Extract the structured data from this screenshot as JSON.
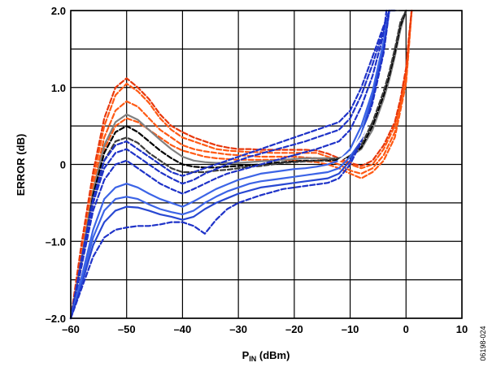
{
  "chart_data": {
    "type": "line",
    "xlabel_main": "P",
    "xlabel_sub": "IN",
    "xlabel_unit": " (dBm)",
    "ylabel": "ERROR (dB)",
    "xlim": [
      -60,
      10
    ],
    "ylim": [
      -2.0,
      2.0
    ],
    "x_ticks": [
      -60,
      -50,
      -40,
      -30,
      -20,
      -10,
      0,
      10
    ],
    "x_tick_labels": [
      "–60",
      "–50",
      "–40",
      "–30",
      "–20",
      "–10",
      "0",
      "10"
    ],
    "y_ticks": [
      -2.0,
      -1.0,
      0,
      1.0,
      2.0
    ],
    "y_tick_labels": [
      "–2.0",
      "–1.0",
      "0",
      "1.0",
      "2.0"
    ],
    "grid": true,
    "grid_y_step": 0.5,
    "side_note": "06198-024",
    "series": [
      {
        "color": "#ff5a14",
        "dashed": true,
        "x": [
          -60,
          -58,
          -56,
          -54,
          -52,
          -50,
          -48,
          -46,
          -44,
          -42,
          -40,
          -38,
          -36,
          -34,
          -32,
          -30,
          -28,
          -26,
          -24,
          -22,
          -20,
          -18,
          -16,
          -14,
          -12,
          -10,
          -8,
          -6,
          -4,
          -2,
          -1,
          0,
          0.5,
          1
        ],
        "y": [
          -2.0,
          -1.1,
          -0.2,
          0.5,
          0.9,
          1.05,
          0.95,
          0.8,
          0.6,
          0.45,
          0.35,
          0.3,
          0.25,
          0.2,
          0.18,
          0.17,
          0.16,
          0.16,
          0.15,
          0.15,
          0.15,
          0.15,
          0.15,
          0.1,
          0.05,
          0.0,
          -0.05,
          0.0,
          0.2,
          0.5,
          0.8,
          1.2,
          1.6,
          2.0
        ]
      },
      {
        "color": "#ff5a14",
        "dashed": true,
        "x": [
          -60,
          -58,
          -56,
          -54,
          -52,
          -50,
          -48,
          -46,
          -44,
          -42,
          -40,
          -38,
          -36,
          -34,
          -32,
          -30,
          -28,
          -26,
          -24,
          -22,
          -20,
          -18,
          -16,
          -14,
          -12,
          -10,
          -8,
          -6,
          -4,
          -2,
          -1,
          0,
          0.5,
          1
        ],
        "y": [
          -2.0,
          -1.2,
          -0.3,
          0.35,
          0.7,
          0.82,
          0.75,
          0.6,
          0.45,
          0.35,
          0.25,
          0.2,
          0.17,
          0.15,
          0.13,
          0.12,
          0.11,
          0.1,
          0.1,
          0.1,
          0.1,
          0.09,
          0.08,
          0.05,
          0.0,
          -0.08,
          -0.12,
          -0.05,
          0.12,
          0.42,
          0.75,
          1.1,
          1.55,
          2.0
        ]
      },
      {
        "color": "#ff5a14",
        "dashed": true,
        "x": [
          -60,
          -58,
          -56,
          -54,
          -52,
          -50,
          -48,
          -46,
          -44,
          -42,
          -40,
          -38,
          -36,
          -34,
          -32,
          -30,
          -28,
          -26,
          -24,
          -22,
          -20,
          -18,
          -16,
          -14,
          -12,
          -10,
          -8,
          -6,
          -4,
          -2,
          -1,
          0,
          0.5,
          1
        ],
        "y": [
          -2.0,
          -1.3,
          -0.45,
          0.2,
          0.5,
          0.6,
          0.55,
          0.45,
          0.35,
          0.25,
          0.18,
          0.14,
          0.1,
          0.08,
          0.07,
          0.06,
          0.06,
          0.06,
          0.06,
          0.06,
          0.05,
          0.04,
          0.03,
          0.0,
          -0.05,
          -0.12,
          -0.18,
          -0.1,
          0.05,
          0.35,
          0.7,
          1.05,
          1.5,
          2.0
        ]
      },
      {
        "color": "#e8380c",
        "dashed": true,
        "x": [
          -60,
          -58,
          -56,
          -54,
          -52,
          -50,
          -48,
          -46,
          -44,
          -42,
          -40,
          -38,
          -36,
          -34,
          -32,
          -30,
          -28,
          -26,
          -24,
          -22,
          -20,
          -18,
          -16,
          -14,
          -12,
          -10,
          -8,
          -6,
          -4,
          -2,
          -1,
          0,
          0.5,
          1
        ],
        "y": [
          -2.0,
          -1.0,
          -0.1,
          0.6,
          1.0,
          1.12,
          1.0,
          0.85,
          0.65,
          0.5,
          0.42,
          0.35,
          0.3,
          0.25,
          0.22,
          0.2,
          0.2,
          0.19,
          0.19,
          0.19,
          0.19,
          0.19,
          0.18,
          0.14,
          0.08,
          0.02,
          -0.02,
          0.05,
          0.25,
          0.55,
          0.85,
          1.25,
          1.65,
          2.0
        ]
      },
      {
        "color": "#808080",
        "dashed": false,
        "x": [
          -60,
          -58,
          -56,
          -54,
          -52,
          -50,
          -48,
          -46,
          -44,
          -42,
          -40,
          -38,
          -36,
          -34,
          -32,
          -30,
          -28,
          -26,
          -24,
          -22,
          -20,
          -18,
          -16,
          -14,
          -12,
          -10,
          -8,
          -6,
          -4,
          -3,
          -2,
          -1,
          0
        ],
        "y": [
          -2.0,
          -1.2,
          -0.35,
          0.25,
          0.55,
          0.65,
          0.58,
          0.45,
          0.32,
          0.2,
          0.1,
          0.05,
          0.03,
          0.02,
          0.02,
          0.02,
          0.03,
          0.04,
          0.05,
          0.06,
          0.07,
          0.08,
          0.08,
          0.08,
          0.08,
          0.1,
          0.2,
          0.45,
          0.85,
          1.1,
          1.4,
          1.75,
          2.0
        ]
      },
      {
        "color": "#000000",
        "dashed": true,
        "x": [
          -60,
          -58,
          -56,
          -54,
          -52,
          -50,
          -48,
          -46,
          -44,
          -42,
          -40,
          -38,
          -36,
          -34,
          -32,
          -30,
          -28,
          -26,
          -24,
          -22,
          -20,
          -18,
          -16,
          -14,
          -12,
          -10,
          -8,
          -6,
          -4,
          -3,
          -2,
          -1,
          0
        ],
        "y": [
          -2.0,
          -1.25,
          -0.4,
          0.15,
          0.42,
          0.5,
          0.42,
          0.3,
          0.18,
          0.08,
          0.0,
          -0.03,
          -0.04,
          -0.04,
          -0.03,
          -0.02,
          -0.01,
          0.0,
          0.02,
          0.03,
          0.04,
          0.05,
          0.05,
          0.05,
          0.06,
          0.1,
          0.22,
          0.5,
          0.9,
          1.15,
          1.45,
          1.8,
          2.0
        ]
      },
      {
        "color": "#3a3a3a",
        "dashed": true,
        "x": [
          -60,
          -58,
          -56,
          -54,
          -52,
          -50,
          -48,
          -46,
          -44,
          -42,
          -40,
          -38,
          -36,
          -34,
          -32,
          -30,
          -28,
          -26,
          -24,
          -22,
          -20,
          -18,
          -16,
          -14,
          -12,
          -10,
          -8,
          -6,
          -4,
          -3,
          -2,
          -1,
          0
        ],
        "y": [
          -2.0,
          -1.3,
          -0.5,
          0.05,
          0.3,
          0.35,
          0.28,
          0.15,
          0.05,
          -0.05,
          -0.1,
          -0.1,
          -0.1,
          -0.08,
          -0.07,
          -0.05,
          -0.03,
          -0.02,
          0.0,
          0.02,
          0.03,
          0.04,
          0.05,
          0.06,
          0.08,
          0.12,
          0.25,
          0.55,
          0.95,
          1.2,
          1.5,
          1.85,
          2.0
        ]
      },
      {
        "color": "#1e32c8",
        "dashed": true,
        "x": [
          -60,
          -58,
          -56,
          -54,
          -52,
          -50,
          -48,
          -46,
          -44,
          -42,
          -40,
          -38,
          -36,
          -34,
          -32,
          -30,
          -28,
          -26,
          -24,
          -22,
          -20,
          -18,
          -16,
          -14,
          -12,
          -10,
          -8,
          -6,
          -4,
          -3,
          -2
        ],
        "y": [
          -2.0,
          -1.2,
          -0.45,
          0.05,
          0.25,
          0.3,
          0.2,
          0.1,
          0.0,
          -0.1,
          -0.15,
          -0.1,
          -0.05,
          0.0,
          0.05,
          0.1,
          0.15,
          0.2,
          0.25,
          0.3,
          0.35,
          0.4,
          0.45,
          0.5,
          0.55,
          0.7,
          1.0,
          1.4,
          1.8,
          2.0,
          2.0
        ]
      },
      {
        "color": "#1e32c8",
        "dashed": true,
        "x": [
          -60,
          -58,
          -56,
          -54,
          -52,
          -50,
          -48,
          -46,
          -44,
          -42,
          -40,
          -38,
          -36,
          -34,
          -32,
          -30,
          -28,
          -26,
          -24,
          -22,
          -20,
          -18,
          -16,
          -14,
          -12,
          -10,
          -8,
          -6,
          -4,
          -3
        ],
        "y": [
          -2.0,
          -1.25,
          -0.5,
          -0.05,
          0.15,
          0.2,
          0.1,
          0.0,
          -0.1,
          -0.18,
          -0.25,
          -0.2,
          -0.12,
          -0.06,
          0.0,
          0.05,
          0.1,
          0.14,
          0.18,
          0.22,
          0.26,
          0.3,
          0.35,
          0.4,
          0.45,
          0.6,
          0.9,
          1.3,
          1.75,
          2.0
        ]
      },
      {
        "color": "#1e32c8",
        "dashed": true,
        "x": [
          -60,
          -58,
          -56,
          -54,
          -52,
          -50,
          -48,
          -46,
          -44,
          -42,
          -40,
          -38,
          -36,
          -34,
          -32,
          -30,
          -28,
          -26,
          -24,
          -22,
          -20,
          -18,
          -16,
          -14,
          -12,
          -10,
          -8,
          -6,
          -4,
          -3.5
        ],
        "y": [
          -2.0,
          -1.3,
          -0.6,
          -0.2,
          0.0,
          0.05,
          -0.05,
          -0.15,
          -0.25,
          -0.32,
          -0.38,
          -0.32,
          -0.25,
          -0.18,
          -0.12,
          -0.08,
          -0.04,
          0.0,
          0.04,
          0.08,
          0.12,
          0.16,
          0.2,
          0.25,
          0.3,
          0.45,
          0.75,
          1.15,
          1.7,
          2.0
        ]
      },
      {
        "color": "#3c64e6",
        "dashed": false,
        "x": [
          -60,
          -58,
          -56,
          -54,
          -52,
          -50,
          -48,
          -46,
          -44,
          -42,
          -40,
          -38,
          -36,
          -34,
          -32,
          -30,
          -28,
          -26,
          -24,
          -22,
          -20,
          -18,
          -16,
          -14,
          -12,
          -10,
          -8,
          -6,
          -4,
          -3
        ],
        "y": [
          -2.0,
          -1.45,
          -0.85,
          -0.45,
          -0.3,
          -0.25,
          -0.3,
          -0.38,
          -0.45,
          -0.5,
          -0.55,
          -0.48,
          -0.4,
          -0.32,
          -0.26,
          -0.2,
          -0.16,
          -0.12,
          -0.1,
          -0.08,
          -0.06,
          -0.05,
          -0.03,
          0.0,
          0.05,
          0.2,
          0.5,
          0.95,
          1.6,
          2.0
        ]
      },
      {
        "color": "#3c64e6",
        "dashed": false,
        "x": [
          -60,
          -58,
          -56,
          -54,
          -52,
          -50,
          -48,
          -46,
          -44,
          -42,
          -40,
          -38,
          -36,
          -34,
          -32,
          -30,
          -28,
          -26,
          -24,
          -22,
          -20,
          -18,
          -16,
          -14,
          -12,
          -10,
          -8,
          -6,
          -4,
          -3
        ],
        "y": [
          -2.0,
          -1.5,
          -0.95,
          -0.6,
          -0.45,
          -0.42,
          -0.45,
          -0.52,
          -0.58,
          -0.62,
          -0.65,
          -0.6,
          -0.5,
          -0.42,
          -0.35,
          -0.3,
          -0.25,
          -0.22,
          -0.2,
          -0.18,
          -0.16,
          -0.14,
          -0.12,
          -0.1,
          -0.05,
          0.1,
          0.4,
          0.9,
          1.55,
          2.0
        ]
      },
      {
        "color": "#2848d2",
        "dashed": false,
        "x": [
          -60,
          -58,
          -56,
          -54,
          -52,
          -50,
          -48,
          -46,
          -44,
          -42,
          -40,
          -38,
          -36,
          -34,
          -32,
          -30,
          -28,
          -26,
          -24,
          -22,
          -20,
          -18,
          -16,
          -14,
          -12,
          -10,
          -8,
          -6,
          -4,
          -3
        ],
        "y": [
          -2.0,
          -1.55,
          -1.05,
          -0.75,
          -0.6,
          -0.55,
          -0.56,
          -0.6,
          -0.65,
          -0.68,
          -0.72,
          -0.68,
          -0.58,
          -0.5,
          -0.44,
          -0.38,
          -0.34,
          -0.3,
          -0.28,
          -0.26,
          -0.24,
          -0.22,
          -0.2,
          -0.18,
          -0.12,
          0.05,
          0.35,
          0.85,
          1.5,
          2.0
        ]
      },
      {
        "color": "#1e32c8",
        "dashed": true,
        "x": [
          -60,
          -58,
          -56,
          -54,
          -52,
          -50,
          -48,
          -46,
          -44,
          -42,
          -40,
          -38,
          -36,
          -34,
          -32,
          -30,
          -28,
          -26,
          -24,
          -22,
          -20,
          -18,
          -16,
          -14,
          -12,
          -10,
          -8,
          -6,
          -4,
          -3
        ],
        "y": [
          -2.0,
          -1.6,
          -1.2,
          -0.95,
          -0.85,
          -0.82,
          -0.8,
          -0.8,
          -0.78,
          -0.75,
          -0.75,
          -0.8,
          -0.9,
          -0.72,
          -0.58,
          -0.5,
          -0.45,
          -0.4,
          -0.36,
          -0.32,
          -0.3,
          -0.28,
          -0.26,
          -0.24,
          -0.18,
          0.0,
          0.3,
          0.8,
          1.45,
          2.0
        ]
      },
      {
        "color": "#ffffff",
        "dashed": false,
        "x": [
          -12,
          -10,
          -8,
          -6,
          -4,
          -3,
          -2,
          -1.5
        ],
        "y": [
          0.05,
          0.15,
          0.35,
          0.7,
          1.15,
          1.45,
          1.8,
          2.0
        ]
      }
    ]
  }
}
